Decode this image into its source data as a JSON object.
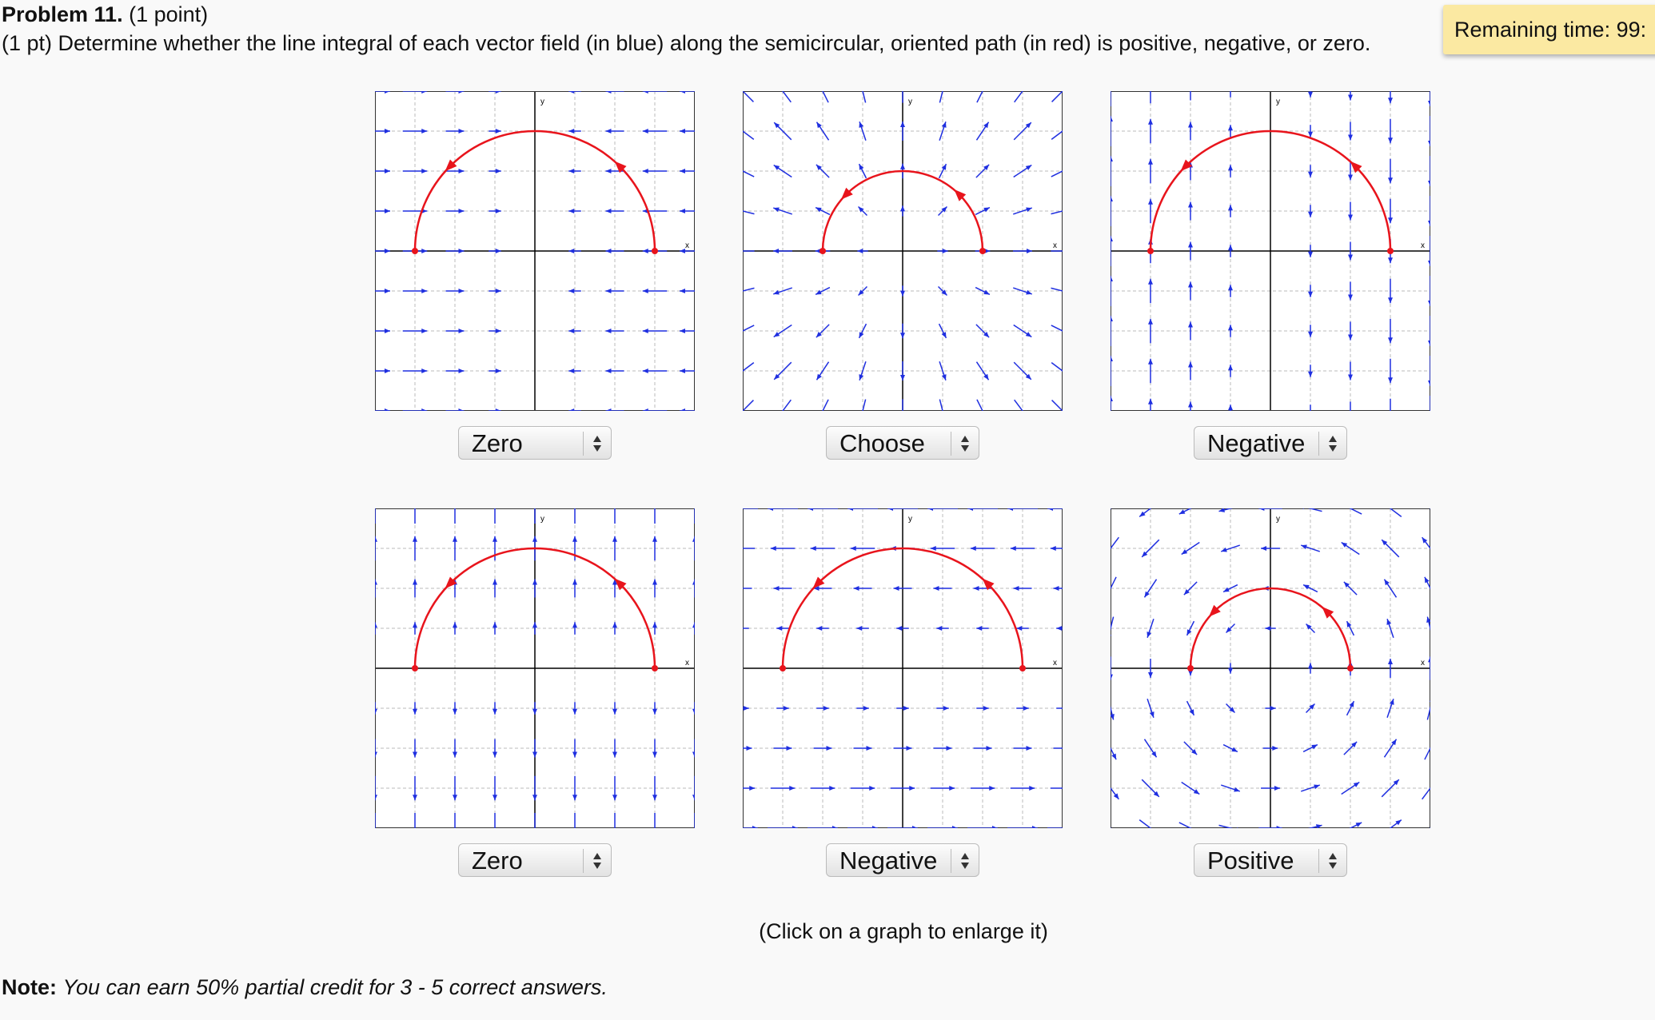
{
  "header": {
    "title": "Problem 11.",
    "points": "(1 point)",
    "instructions": "(1 pt) Determine whether the line integral of each vector field (in blue) along the semicircular, oriented path (in red) is positive, negative, or zero."
  },
  "timer": "Remaining time: 99:",
  "graphs": [
    {
      "x_label": "x",
      "y_label": "y",
      "answer": "Zero"
    },
    {
      "x_label": "x",
      "y_label": "y",
      "answer": "Choose"
    },
    {
      "x_label": "x",
      "y_label": "y",
      "answer": "Negative"
    },
    {
      "x_label": "x",
      "y_label": "y",
      "answer": "Zero"
    },
    {
      "x_label": "x",
      "y_label": "y",
      "answer": "Negative"
    },
    {
      "x_label": "x",
      "y_label": "y",
      "answer": "Positive"
    }
  ],
  "hint": "(Click on a graph to enlarge it)",
  "note": {
    "label": "Note:",
    "text": "You can earn 50% partial credit for 3 - 5 correct answers."
  }
}
